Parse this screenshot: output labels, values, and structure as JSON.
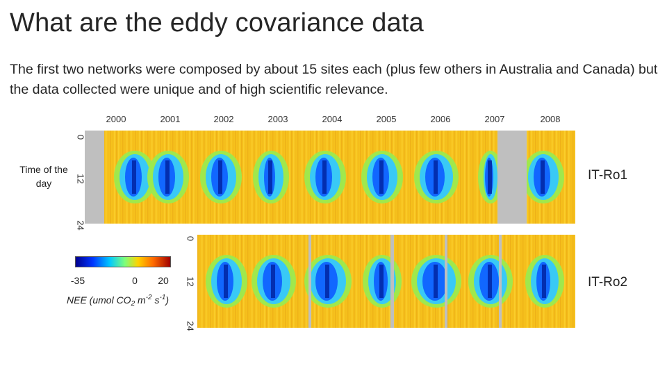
{
  "title": "What are the eddy covariance data",
  "body_text": "The first two networks were composed by about 15 sites each (plus few others in Australia and Canada) but the data collected were unique and of high scientific relevance.",
  "chart_data": {
    "type": "heatmap",
    "description_axes": {
      "x": "year",
      "y": "Time of the day (hours)"
    },
    "years": [
      "2000",
      "2001",
      "2002",
      "2003",
      "2004",
      "2005",
      "2006",
      "2007",
      "2008"
    ],
    "ylabel": "Time of the day",
    "y_ticks": [
      "0",
      "12",
      "24"
    ],
    "ylim": [
      0,
      24
    ],
    "colorbar": {
      "label_prefix": "NEE (umol CO",
      "label_sub": "2",
      "label_mid": " m",
      "label_sup1": "-2",
      "label_mid2": " s",
      "label_sup2": "-1",
      "label_suffix": ")",
      "ticks": [
        "-35",
        "0",
        "20"
      ],
      "range": [
        -35,
        20
      ],
      "colors": [
        "#00008f",
        "#0035ff",
        "#00c8ff",
        "#7dff7a",
        "#ffd200",
        "#ff6a00",
        "#a00000"
      ]
    },
    "series": [
      {
        "name": "IT-Ro1",
        "missing_periods": [
          "2000",
          "2007"
        ],
        "summer_uptake_years": [
          "2000",
          "2001",
          "2002",
          "2003",
          "2004",
          "2005",
          "2006",
          "2007",
          "2008"
        ]
      },
      {
        "name": "IT-Ro2",
        "summer_uptake_years": [
          "2002",
          "2003",
          "2004",
          "2005",
          "2006",
          "2007",
          "2008"
        ]
      }
    ]
  }
}
